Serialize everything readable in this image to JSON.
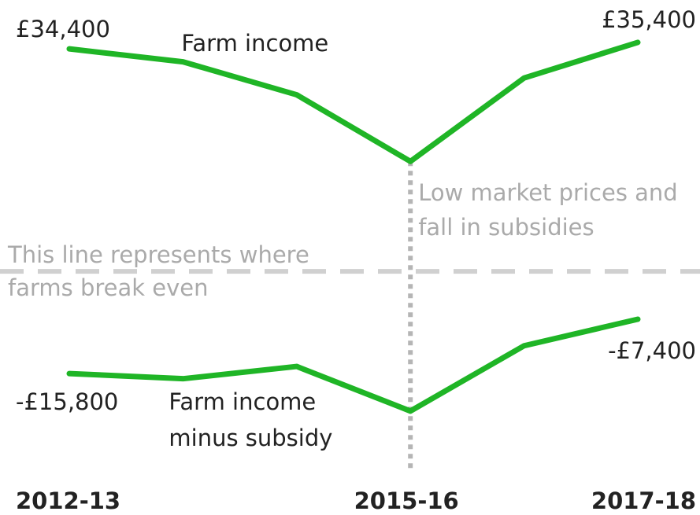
{
  "chart_data": {
    "type": "line",
    "categories": [
      "2012-13",
      null,
      null,
      "2015-16",
      null,
      "2017-18"
    ],
    "series": [
      {
        "name": "Farm income",
        "color": "#1fb526",
        "values": [
          34400,
          32400,
          27300,
          17000,
          29900,
          35400
        ],
        "value_labels": [
          "£34,400",
          null,
          null,
          null,
          null,
          "£35,400"
        ]
      },
      {
        "name": "Farm income minus subsidy",
        "color": "#1fb526",
        "values": [
          -15800,
          -16600,
          -14700,
          -21600,
          -11500,
          -7400
        ],
        "value_labels": [
          "-£15,800",
          null,
          null,
          null,
          null,
          "-£7,400"
        ]
      }
    ],
    "ylim": [
      -26000,
      36000
    ],
    "hline": {
      "value": 0,
      "label": "This line represents where farms break even"
    },
    "vline": {
      "category": "2015-16",
      "label": "Low market prices and fall in subsidies"
    }
  }
}
